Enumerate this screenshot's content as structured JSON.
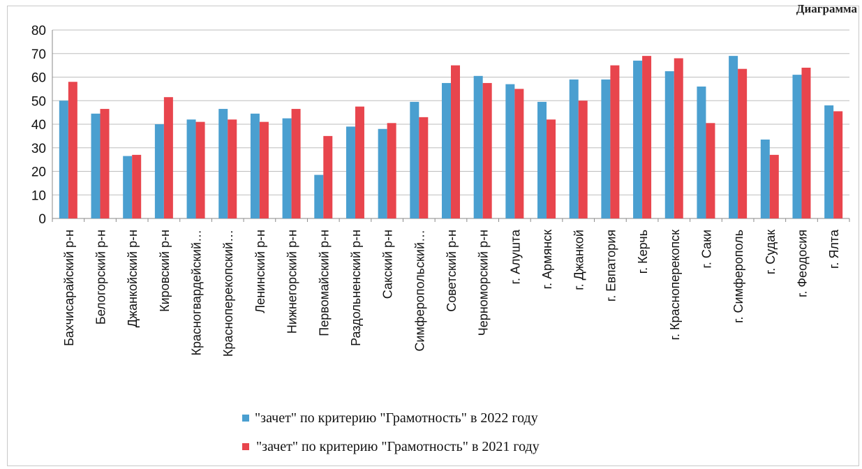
{
  "header": {
    "corner_text": "Диаграмма"
  },
  "chart_data": {
    "type": "bar",
    "title": "",
    "xlabel": "",
    "ylabel": "",
    "ylim": [
      0,
      80
    ],
    "yticks": [
      0,
      10,
      20,
      30,
      40,
      50,
      60,
      70,
      80
    ],
    "grid": true,
    "legend_position": "bottom",
    "categories": [
      "Бахчисарайский р-н",
      "Белогорский р-н",
      "Джанкойский р-н",
      "Кировский р-н",
      "Красногвардейский…",
      "Красноперекопский…",
      "Ленинский р-н",
      "Нижнегорский р-н",
      "Первомайский р-н",
      "Раздольненский р-н",
      "Сакский р-н",
      "Симферопольский…",
      "Советский р-н",
      "Черноморский р-н",
      "г. Алушта",
      "г. Армянск",
      "г. Джанкой",
      "г. Евпатория",
      "г. Керчь",
      "г. Красноперекопск",
      "г. Саки",
      "г. Симферополь",
      "г. Судак",
      "г. Феодосия",
      "г. Ялта"
    ],
    "series": [
      {
        "name": "\"зачет\" по критерию \"Грамотность\" в 2022 году",
        "color": "#4a9fd0",
        "values": [
          50,
          44.5,
          26.5,
          40,
          42,
          46.5,
          44.5,
          42.5,
          18.5,
          39,
          38,
          49.5,
          57.5,
          60.5,
          57,
          49.5,
          59,
          59,
          67,
          62.5,
          56,
          69,
          33.5,
          61,
          48
        ]
      },
      {
        "name": "\"зачет\" по критерию \"Грамотность\" в 2021 году",
        "color": "#e8454d",
        "values": [
          58,
          46.5,
          27,
          51.5,
          41,
          42,
          41,
          46.5,
          35,
          47.5,
          40.5,
          43,
          65,
          57.5,
          55,
          42,
          50,
          65,
          69,
          68,
          40.5,
          63.5,
          27,
          64,
          45.5
        ]
      }
    ]
  }
}
